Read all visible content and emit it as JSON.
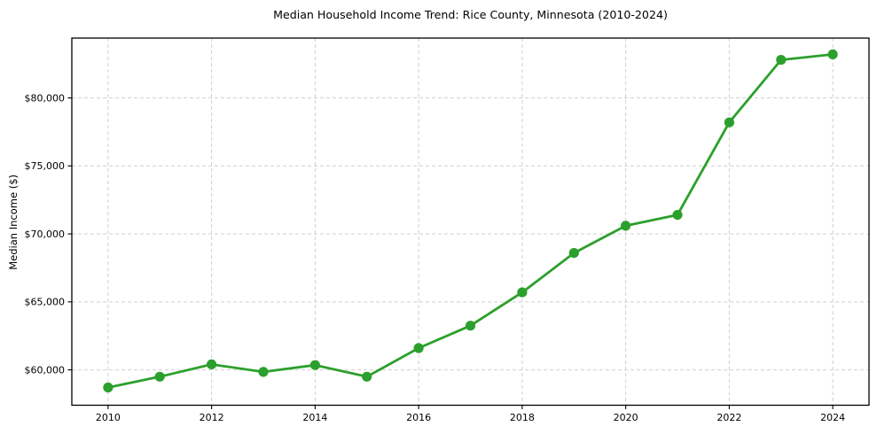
{
  "chart_data": {
    "type": "line",
    "title": "Median Household Income Trend: Rice County, Minnesota (2010-2024)",
    "xlabel": "",
    "ylabel": "Median Income ($)",
    "x": [
      2010,
      2011,
      2012,
      2013,
      2014,
      2015,
      2016,
      2017,
      2018,
      2019,
      2020,
      2021,
      2022,
      2023,
      2024
    ],
    "series": [
      {
        "name": "Median household income",
        "values": [
          58700,
          59500,
          60400,
          59850,
          60350,
          59500,
          61600,
          63250,
          65700,
          68600,
          70600,
          71400,
          78200,
          82800,
          83200
        ]
      }
    ],
    "xticks": [
      2010,
      2012,
      2014,
      2016,
      2018,
      2020,
      2022,
      2024
    ],
    "yticks": [
      60000,
      65000,
      70000,
      75000,
      80000
    ],
    "ytick_prefix": "$",
    "xlim": [
      2009.3,
      2024.7
    ],
    "ylim": [
      57400,
      84400
    ],
    "grid": true,
    "grid_style": "dashed",
    "legend": "none",
    "colors": {
      "line": "#2ca02c",
      "marker": "#2ca02c",
      "grid": "#d0d0d0",
      "axis": "#000000",
      "text": "#000000",
      "background": "#ffffff"
    }
  }
}
